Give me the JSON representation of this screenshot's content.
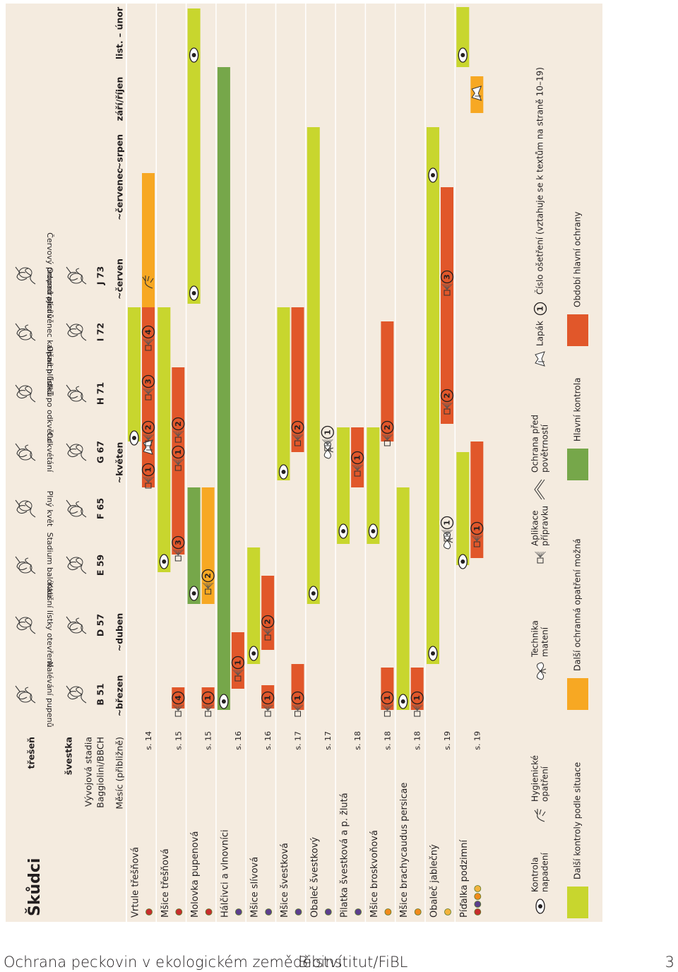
{
  "title": "Škůdci",
  "header": {
    "fruit_1": "třešeň",
    "fruit_2": "švestka",
    "stages_label": "Vývojová stadia",
    "code_label": "Baggiolini/BBCH",
    "month_label": "Měsíc (přibližně)"
  },
  "stages": [
    {
      "name": "Nalévání pupenů",
      "code": "B 51"
    },
    {
      "name": "Kališní lístky otevřené",
      "code": "D 57"
    },
    {
      "name": "Stadium balónku",
      "code": "E 59"
    },
    {
      "name": "Plný květ",
      "code": "F 65"
    },
    {
      "name": "Odkvétání",
      "code": "G 67"
    },
    {
      "name": "Opad plůdků po odkvětu",
      "code": "H 71"
    },
    {
      "name": "Odumírající věnec kališních lístků",
      "code": "I 72"
    },
    {
      "name": "Červový propad plodů",
      "code": "J 73"
    }
  ],
  "months": [
    "~březen",
    "~duben",
    "~květen",
    "~červen",
    "~červenec",
    "~srpen",
    "září/říjen",
    "list. – únor"
  ],
  "pests": [
    {
      "name": "Vrtule třešňová",
      "page": "s. 14",
      "treatments": [
        1,
        2,
        3,
        4
      ]
    },
    {
      "name": "Mšice třešňová",
      "page": "s. 15",
      "treatments": [
        4,
        3,
        1,
        2
      ]
    },
    {
      "name": "Molovka pupenová",
      "page": "s. 15",
      "treatments": [
        1,
        2
      ]
    },
    {
      "name": "Hálčivci a vlnovníci",
      "page": "s. 16",
      "treatments": [
        1
      ]
    },
    {
      "name": "Mšice slívová",
      "page": "s. 16",
      "treatments": [
        1,
        2
      ]
    },
    {
      "name": "Mšice švestková",
      "page": "s. 17",
      "treatments": [
        1,
        2
      ]
    },
    {
      "name": "Obaleč švestkový",
      "page": "s. 17",
      "treatments": [
        1
      ]
    },
    {
      "name": "Pilatka švestková a p. žlutá",
      "page": "s. 18",
      "treatments": [
        1
      ]
    },
    {
      "name": "Mšice broskvoňová",
      "page": "s. 18",
      "treatments": [
        1,
        2
      ]
    },
    {
      "name": "Mšice brachycaudus persicae",
      "page": "s. 18",
      "treatments": [
        1
      ]
    },
    {
      "name": "Obaleč jablečný",
      "page": "s. 19",
      "treatments": [
        1,
        2,
        3
      ]
    },
    {
      "name": "Píďalka podzimní",
      "page": "s. 19",
      "treatments": [
        1
      ]
    }
  ],
  "legend": {
    "symbols": [
      {
        "lines": [
          "Kontrola",
          "napadení"
        ]
      },
      {
        "lines": [
          "Hygienické",
          "opatření"
        ]
      },
      {
        "lines": [
          "Technika",
          "matení"
        ]
      },
      {
        "lines": [
          "Aplikace",
          "přípravku"
        ]
      },
      {
        "lines": [
          "Ochrana před",
          "povětrností"
        ]
      },
      {
        "lines": [
          "Lapák"
        ]
      },
      {
        "symbol": 1,
        "lines": [
          "Číslo ošetření (vztahuje se k textům na straně 10–19)"
        ]
      }
    ],
    "colors": [
      {
        "label": "Další kontroly podle situace",
        "color": "#c8d62e"
      },
      {
        "label": "Další ochranná opatření možná",
        "color": "#f7a823"
      },
      {
        "label": "Hlavní kontrola",
        "color": "#76a74a"
      },
      {
        "label": "Období hlavní ochrany",
        "color": "#e1572a"
      }
    ]
  },
  "footer": {
    "title": "Ochrana peckovin v ekologickém zemědělství",
    "publisher": "Bioinstitut/FiBL",
    "page": "3"
  }
}
